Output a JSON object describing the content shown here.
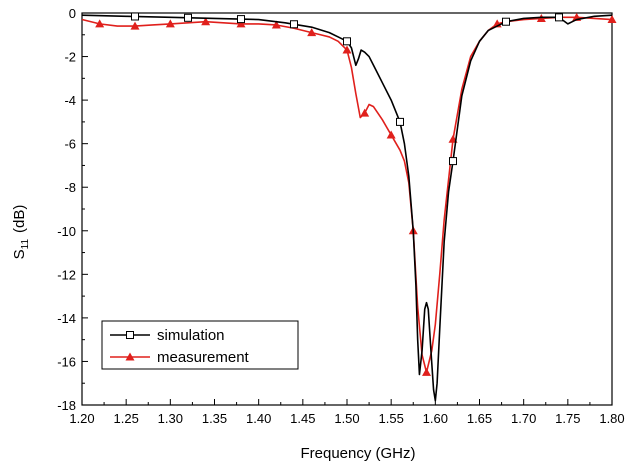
{
  "chart_data": {
    "type": "line",
    "title": "",
    "xlabel": "Frequency (GHz)",
    "ylabel_main": "S",
    "ylabel_sub": "11",
    "ylabel_unit": "(dB)",
    "xlim": [
      1.2,
      1.8
    ],
    "ylim": [
      -18,
      0
    ],
    "xticks": [
      "1.20",
      "1.25",
      "1.30",
      "1.35",
      "1.40",
      "1.45",
      "1.50",
      "1.55",
      "1.60",
      "1.65",
      "1.70",
      "1.75",
      "1.80"
    ],
    "yticks": [
      "0",
      "-2",
      "-4",
      "-6",
      "-8",
      "-10",
      "-12",
      "-14",
      "-16",
      "-18"
    ],
    "grid": false,
    "legend": "bottom-left",
    "series": [
      {
        "name": "simulation",
        "color": "#000000",
        "marker": "open-square",
        "x": [
          1.2,
          1.25,
          1.3,
          1.35,
          1.4,
          1.43,
          1.46,
          1.48,
          1.49,
          1.5,
          1.505,
          1.51,
          1.513,
          1.516,
          1.52,
          1.525,
          1.53,
          1.54,
          1.55,
          1.56,
          1.565,
          1.57,
          1.575,
          1.578,
          1.58,
          1.582,
          1.585,
          1.588,
          1.59,
          1.592,
          1.595,
          1.598,
          1.6,
          1.602,
          1.605,
          1.61,
          1.615,
          1.62,
          1.63,
          1.64,
          1.65,
          1.66,
          1.68,
          1.7,
          1.72,
          1.74,
          1.745,
          1.75,
          1.755,
          1.76,
          1.78,
          1.8
        ],
        "y": [
          -0.1,
          -0.15,
          -0.2,
          -0.25,
          -0.3,
          -0.45,
          -0.65,
          -0.9,
          -1.1,
          -1.3,
          -1.6,
          -2.4,
          -2.1,
          -1.7,
          -1.8,
          -2.0,
          -2.4,
          -3.2,
          -4.0,
          -5.0,
          -6.0,
          -7.5,
          -10.0,
          -12.5,
          -15.0,
          -16.6,
          -15.5,
          -13.6,
          -13.3,
          -13.6,
          -15.5,
          -17.3,
          -17.8,
          -17.0,
          -14.5,
          -10.5,
          -8.2,
          -6.8,
          -3.8,
          -2.2,
          -1.3,
          -0.8,
          -0.4,
          -0.25,
          -0.2,
          -0.2,
          -0.35,
          -0.5,
          -0.4,
          -0.3,
          -0.15,
          -0.1
        ],
        "marker_x": [
          1.26,
          1.32,
          1.38,
          1.44,
          1.5,
          1.56,
          1.62,
          1.68,
          1.74
        ]
      },
      {
        "name": "measurement",
        "color": "#e0201c",
        "marker": "filled-triangle",
        "x": [
          1.2,
          1.22,
          1.24,
          1.26,
          1.28,
          1.3,
          1.32,
          1.34,
          1.36,
          1.38,
          1.4,
          1.42,
          1.44,
          1.46,
          1.47,
          1.48,
          1.49,
          1.5,
          1.505,
          1.51,
          1.515,
          1.52,
          1.525,
          1.53,
          1.54,
          1.55,
          1.56,
          1.565,
          1.57,
          1.575,
          1.58,
          1.585,
          1.59,
          1.593,
          1.596,
          1.6,
          1.605,
          1.61,
          1.62,
          1.63,
          1.64,
          1.65,
          1.66,
          1.67,
          1.68,
          1.7,
          1.72,
          1.74,
          1.76,
          1.78,
          1.8
        ],
        "y": [
          -0.3,
          -0.5,
          -0.6,
          -0.6,
          -0.55,
          -0.5,
          -0.45,
          -0.4,
          -0.45,
          -0.5,
          -0.5,
          -0.55,
          -0.7,
          -0.9,
          -1.0,
          -1.1,
          -1.3,
          -1.7,
          -2.5,
          -3.7,
          -4.8,
          -4.6,
          -4.2,
          -4.3,
          -4.9,
          -5.6,
          -6.3,
          -6.8,
          -7.8,
          -10.0,
          -13.5,
          -15.7,
          -16.5,
          -16.0,
          -15.5,
          -14.3,
          -12.0,
          -9.5,
          -5.8,
          -3.5,
          -2.0,
          -1.3,
          -0.8,
          -0.5,
          -0.4,
          -0.3,
          -0.25,
          -0.2,
          -0.2,
          -0.25,
          -0.3
        ],
        "marker_x": [
          1.22,
          1.26,
          1.3,
          1.34,
          1.38,
          1.42,
          1.46,
          1.5,
          1.52,
          1.55,
          1.575,
          1.59,
          1.62,
          1.67,
          1.72,
          1.76,
          1.8
        ]
      }
    ]
  }
}
